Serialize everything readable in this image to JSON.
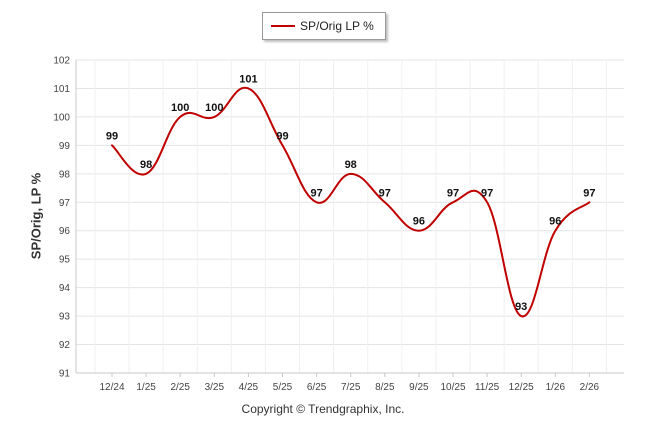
{
  "legend": {
    "label": "SP/Orig LP %"
  },
  "footer": {
    "copyright": "Copyright © Trendgraphix, Inc."
  },
  "colors": {
    "series": "#c00000",
    "grid": "#e4e4e4",
    "axis": "#c8c8c8",
    "tick_text": "#444444",
    "data_label": "#111111"
  },
  "chart_data": {
    "type": "line",
    "title": "",
    "xlabel": "",
    "ylabel": "SP/Orig, LP %",
    "categories": [
      "12/24",
      "1/25",
      "2/25",
      "3/25",
      "4/25",
      "5/25",
      "6/25",
      "7/25",
      "8/25",
      "9/25",
      "10/25",
      "11/25",
      "12/25",
      "1/26",
      "2/26"
    ],
    "series": [
      {
        "name": "SP/Orig LP %",
        "values": [
          99,
          98,
          100,
          100,
          101,
          99,
          97,
          98,
          97,
          96,
          97,
          97,
          93,
          96,
          97
        ],
        "labels": [
          "99",
          "98",
          "100",
          "100",
          "101",
          "99",
          "97",
          "98",
          "97",
          "96",
          "97",
          "97",
          "93",
          "96",
          "97"
        ],
        "color": "#c00000"
      }
    ],
    "ylim": [
      91,
      102
    ],
    "yticks": [
      91,
      92,
      93,
      94,
      95,
      96,
      97,
      98,
      99,
      100,
      101,
      102
    ],
    "grid": true,
    "smooth": true,
    "legend_position": "top-center"
  }
}
